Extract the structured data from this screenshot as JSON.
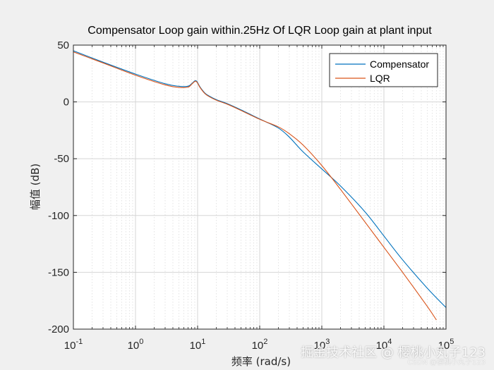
{
  "chart_data": {
    "type": "line",
    "title": "Compensator Loop gain within.25Hz Of LQR Loop gain at plant input",
    "xlabel": "频率  (rad/s)",
    "ylabel": "幅值 (dB)",
    "xscale": "log",
    "xlim": [
      0.1,
      100000
    ],
    "ylim": [
      -200,
      50
    ],
    "xticks": [
      0.1,
      1,
      10,
      100,
      1000,
      10000,
      100000
    ],
    "xtick_labels": [
      {
        "base": "10",
        "exp": "-1"
      },
      {
        "base": "10",
        "exp": "0"
      },
      {
        "base": "10",
        "exp": "1"
      },
      {
        "base": "10",
        "exp": "2"
      },
      {
        "base": "10",
        "exp": "3"
      },
      {
        "base": "10",
        "exp": "4"
      },
      {
        "base": "10",
        "exp": "5"
      }
    ],
    "yticks": [
      50,
      0,
      -50,
      -100,
      -150,
      -200
    ],
    "ytick_labels": [
      "50",
      "0",
      "-50",
      "-100",
      "-150",
      "-200"
    ],
    "grid": true,
    "legend_position": "top-right",
    "series": [
      {
        "name": "Compensator",
        "color": "#0072bd",
        "x": [
          0.1,
          0.3,
          1,
          3,
          5,
          7,
          8,
          9,
          9.5,
          10,
          11,
          13,
          15,
          20,
          30,
          50,
          100,
          200,
          300,
          500,
          1000,
          2000,
          5000,
          10000,
          20000,
          50000,
          100000
        ],
        "y": [
          45,
          35,
          24.5,
          16,
          13.8,
          13.8,
          16,
          18.5,
          18.5,
          17,
          13,
          8,
          5.5,
          2,
          -1.5,
          -7,
          -15,
          -23,
          -31,
          -44,
          -59,
          -74,
          -97,
          -118,
          -139,
          -164,
          -181
        ]
      },
      {
        "name": "LQR",
        "color": "#d95319",
        "x": [
          0.1,
          0.3,
          1,
          3,
          5,
          7,
          8,
          9,
          9.5,
          10,
          11,
          13,
          15,
          20,
          30,
          50,
          100,
          200,
          300,
          500,
          1000,
          2000,
          5000,
          10000,
          20000,
          50000,
          70000
        ],
        "y": [
          44,
          34.3,
          23.5,
          15,
          12.8,
          13,
          15.5,
          18,
          18,
          16.5,
          12.5,
          7.5,
          5,
          1.5,
          -2,
          -7.5,
          -15.3,
          -22,
          -28,
          -38,
          -56,
          -77,
          -106,
          -128,
          -150,
          -180,
          -192
        ]
      }
    ]
  },
  "watermark": {
    "main": "掘金技术社区 @ 樱桃小丸子123",
    "sub": "CSDN @樱桃小丸子123"
  }
}
